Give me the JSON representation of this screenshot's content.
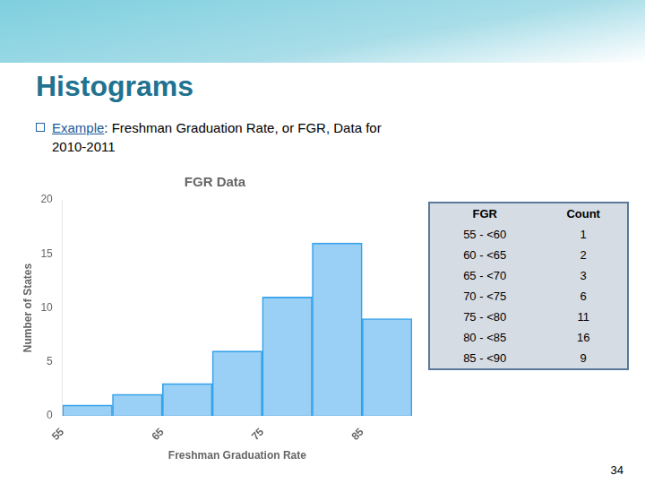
{
  "title": "Histograms",
  "text": {
    "highlight": "Example",
    "line1": ": Freshman Graduation Rate, or FGR, Data for",
    "line2": "2010-2011"
  },
  "table": {
    "headers": [
      "FGR",
      "Count"
    ],
    "rows": [
      [
        "55 - <60",
        "1"
      ],
      [
        "60 - <65",
        "2"
      ],
      [
        "65 - <70",
        "3"
      ],
      [
        "70 - <75",
        "6"
      ],
      [
        "75 - <80",
        "11"
      ],
      [
        "80 - <85",
        "16"
      ],
      [
        "85 - <90",
        "9"
      ]
    ]
  },
  "page_number": "34",
  "chart_data": {
    "type": "histogram",
    "title": "FGR Data",
    "xlabel": "Freshman Graduation Rate",
    "ylabel": "Number of States",
    "bins": [
      55,
      60,
      65,
      70,
      75,
      80,
      85,
      90
    ],
    "values": [
      1,
      2,
      3,
      6,
      11,
      16,
      9
    ],
    "xlim": [
      55,
      90
    ],
    "xticks": [
      55,
      65,
      75,
      85
    ],
    "ylim": [
      0,
      20
    ],
    "yticks": [
      0,
      5,
      10,
      15,
      20
    ],
    "grid": false
  }
}
